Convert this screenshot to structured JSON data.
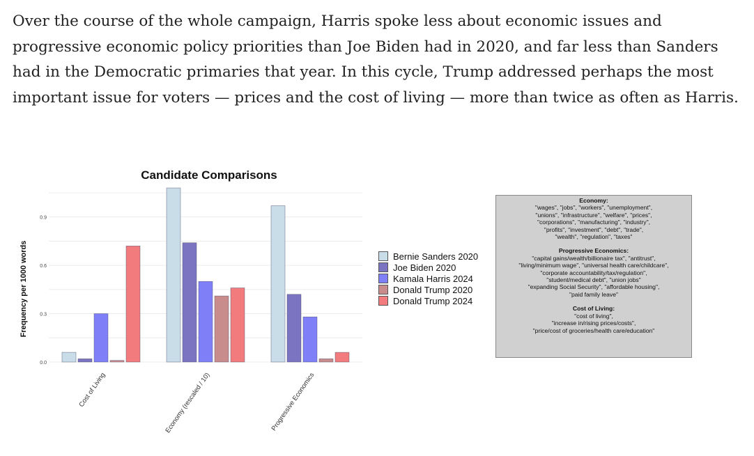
{
  "article": {
    "paragraph": "Over the course of the whole campaign, Harris spoke less about economic issues and progressive economic policy priorities than Joe Biden had in 2020, and far less than Sanders had in the Democratic primaries that year. In this cycle, Trump addressed perhaps the most important issue for voters — prices and the cost of living — more than twice as often as Harris."
  },
  "chart_data": {
    "type": "bar",
    "title": "Candidate Comparisons",
    "xlabel": "",
    "ylabel": "Frequency per 1000 words",
    "categories": [
      "Cost of Living",
      "Economy (rescaled / 10)",
      "Progressive Economics"
    ],
    "ylim": [
      0,
      1.08
    ],
    "yticks": [
      0.0,
      0.3,
      0.6,
      0.9
    ],
    "ytick_labels": [
      "0.0",
      "0.3",
      "0.6",
      "0.9"
    ],
    "grid": true,
    "legend_position": "right",
    "series": [
      {
        "name": "Bernie Sanders 2020",
        "color": "#c9dde8",
        "values": [
          0.06,
          1.08,
          0.97
        ]
      },
      {
        "name": "Joe Biden 2020",
        "color": "#7b74c0",
        "values": [
          0.02,
          0.74,
          0.42
        ]
      },
      {
        "name": "Kamala Harris 2024",
        "color": "#7f7ff7",
        "values": [
          0.3,
          0.5,
          0.28
        ]
      },
      {
        "name": "Donald Trump 2020",
        "color": "#c98c8c",
        "values": [
          0.01,
          0.41,
          0.02
        ]
      },
      {
        "name": "Donald Trump 2024",
        "color": "#f27b7d",
        "values": [
          0.72,
          0.46,
          0.06
        ]
      }
    ]
  },
  "keyword_box": {
    "sections": [
      {
        "heading": "Economy:",
        "lines": [
          "\"wages\", \"jobs\", \"workers\", \"unemployment\",",
          "\"unions\", \"infrastructure\", \"welfare\", \"prices\",",
          "\"corporations\", \"manufacturing\", \"industry\",",
          "\"profits\", \"investment\", \"debt\", \"trade\",",
          "\"wealth\", \"regulation\", \"taxes\""
        ]
      },
      {
        "heading": "Progressive Economics:",
        "lines": [
          "\"capital gains/wealth/billionaire tax\", \"antitrust\",",
          "\"living/minimum wage\", \"universal health care/childcare\",",
          "\"corporate accountability/tax/regulation\",",
          "\"student/medical debt\", \"union jobs\"",
          "\"expanding Social Security\", \"affordable housing\",",
          "\"paid family leave\""
        ]
      },
      {
        "heading": "Cost of Living:",
        "lines": [
          "\"cost of living\",",
          "\"increase in/rising prices/costs\",",
          "\"price/cost of groceries/health care/education\""
        ]
      }
    ]
  }
}
